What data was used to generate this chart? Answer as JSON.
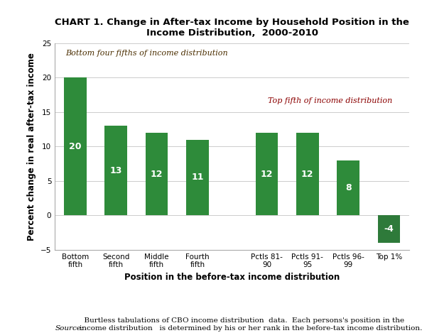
{
  "title": "CHART 1. Change in After-tax Income by Household Position in the\nIncome Distribution,  2000-2010",
  "xlabel": "Position in the before-tax income distribution",
  "ylabel": "Percent change in real after-tax income",
  "categories": [
    "Bottom\nfifth",
    "Second\nfifth",
    "Middle\nfifth",
    "Fourth\nfifth",
    "Pctls 81-\n90",
    "Pctls 91-\n95",
    "Pctls 96-\n99",
    "Top 1%"
  ],
  "values": [
    20,
    13,
    12,
    11,
    12,
    12,
    8,
    -4
  ],
  "bar_color_positive": "#2E8B3A",
  "bar_color_negative": "#2E7A3A",
  "ylim": [
    -5,
    25
  ],
  "yticks": [
    -5,
    0,
    5,
    10,
    15,
    20,
    25
  ],
  "label_bottom_text": "Bottom four fifths of income distribution",
  "label_top_text": "Top fifth of income distribution",
  "label_bottom_color": "#4B2E00",
  "label_top_color": "#8B0000",
  "source_italic": "Source:",
  "source_text": "  Burtless tabulations of CBO income distribution  data.  Each persons's position in the\nincome distribution   is determined by his or her rank in the before-tax income distribution.",
  "background_color": "#ffffff",
  "bar_label_color": "#ffffff",
  "bar_label_fontsize": 9,
  "title_fontsize": 9.5,
  "axis_label_fontsize": 8.5,
  "tick_label_fontsize": 7.5,
  "source_fontsize": 7.5,
  "annotation_fontsize": 8
}
